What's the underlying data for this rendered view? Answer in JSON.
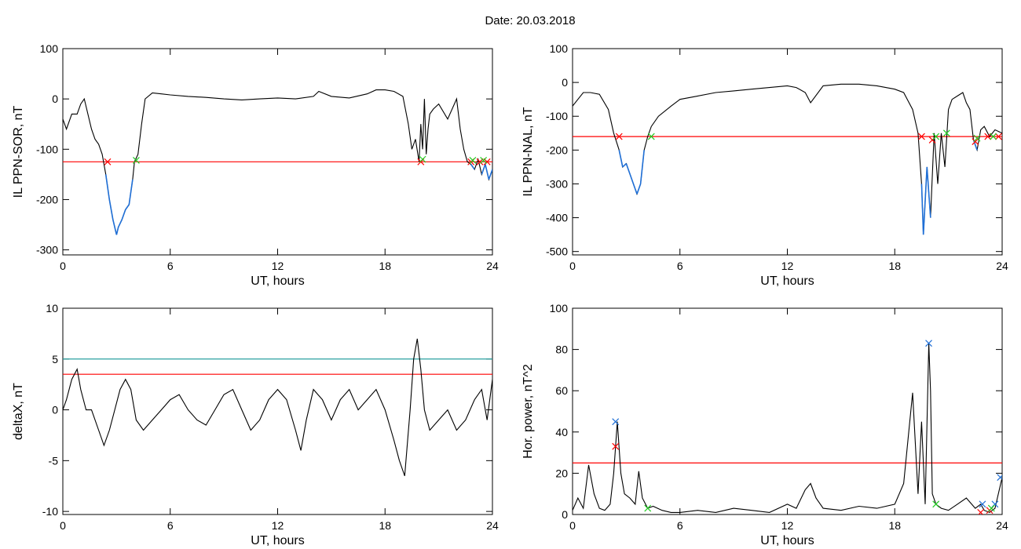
{
  "title": "Date:  20.03.2018",
  "colors": {
    "trace": "#000000",
    "below": "#1f6fd6",
    "threshold_red": "#ff0000",
    "threshold_teal": "#2aa0a0",
    "mark_red": "#ff0000",
    "mark_green": "#22cc22",
    "mark_blue": "#1f6fd6"
  },
  "chart_data": [
    {
      "type": "line",
      "xlabel": "UT, hours",
      "ylabel": "IL PPN-SOR, nT",
      "xlim": [
        0,
        24
      ],
      "ylim": [
        -310,
        100
      ],
      "xticks": [
        0,
        6,
        12,
        18,
        24
      ],
      "yticks": [
        -300,
        -200,
        -100,
        0,
        100
      ],
      "xtick_labels": [
        "0",
        "6",
        "12",
        "18",
        "24"
      ],
      "ytick_labels": [
        "-300",
        "-200",
        "-100",
        "0",
        "100"
      ],
      "threshold": -125,
      "series": [
        {
          "x": [
            0,
            0.2,
            0.5,
            0.8,
            1.0,
            1.2,
            1.4,
            1.6,
            1.8,
            2.0,
            2.2,
            2.4,
            2.6,
            2.8,
            3.0,
            3.1,
            3.3,
            3.5,
            3.7,
            3.9,
            4.0,
            4.2,
            4.4,
            4.6,
            5.0,
            5.5,
            6,
            7,
            8,
            9,
            10,
            11,
            12,
            13,
            14,
            14.3,
            15,
            16,
            17,
            17.5,
            18,
            18.5,
            19,
            19.3,
            19.5,
            19.7,
            19.9,
            20.0,
            20.1,
            20.2,
            20.3,
            20.4,
            20.5,
            20.7,
            21.0,
            21.5,
            22.0,
            22.2,
            22.4,
            22.6,
            22.8,
            23.0,
            23.2,
            23.4,
            23.6,
            23.8,
            24.0
          ],
          "y": [
            -40,
            -60,
            -30,
            -30,
            -10,
            0,
            -30,
            -60,
            -80,
            -90,
            -110,
            -150,
            -200,
            -240,
            -270,
            -255,
            -240,
            -220,
            -210,
            -160,
            -125,
            -110,
            -50,
            0,
            12,
            10,
            8,
            5,
            3,
            0,
            -2,
            0,
            2,
            0,
            5,
            15,
            5,
            2,
            10,
            18,
            18,
            15,
            5,
            -50,
            -100,
            -80,
            -125,
            -50,
            -100,
            0,
            -110,
            -60,
            -30,
            -20,
            -10,
            -40,
            0,
            -60,
            -100,
            -125,
            -130,
            -140,
            -120,
            -150,
            -130,
            -160,
            -140
          ]
        }
      ],
      "crossings_red": [
        [
          2.5,
          -125
        ],
        [
          20.0,
          -125
        ],
        [
          22.8,
          -125
        ],
        [
          23.3,
          -125
        ],
        [
          23.7,
          -125
        ]
      ],
      "crossings_green": [
        [
          4.1,
          -122
        ],
        [
          20.1,
          -120
        ],
        [
          22.9,
          -122
        ],
        [
          23.5,
          -122
        ]
      ]
    },
    {
      "type": "line",
      "xlabel": "UT, hours",
      "ylabel": "IL PPN-NAL, nT",
      "xlim": [
        0,
        24
      ],
      "ylim": [
        -510,
        100
      ],
      "xticks": [
        0,
        6,
        12,
        18,
        24
      ],
      "yticks": [
        -500,
        -400,
        -300,
        -200,
        -100,
        0,
        100
      ],
      "xtick_labels": [
        "0",
        "6",
        "12",
        "18",
        "24"
      ],
      "ytick_labels": [
        "-500",
        "-400",
        "-300",
        "-200",
        "-100",
        "0",
        "100"
      ],
      "threshold": -160,
      "series": [
        {
          "x": [
            0,
            0.3,
            0.6,
            1.0,
            1.5,
            2.0,
            2.3,
            2.6,
            2.8,
            3.0,
            3.2,
            3.4,
            3.6,
            3.8,
            4.0,
            4.2,
            4.4,
            4.8,
            5.5,
            6,
            7,
            8,
            9,
            10,
            11,
            12,
            12.5,
            13,
            13.3,
            14,
            15,
            16,
            17,
            18,
            18.5,
            19,
            19.3,
            19.5,
            19.6,
            19.8,
            20.0,
            20.2,
            20.4,
            20.6,
            20.8,
            21.0,
            21.2,
            21.5,
            21.8,
            22.0,
            22.2,
            22.4,
            22.6,
            22.8,
            23.0,
            23.3,
            23.6,
            24.0
          ],
          "y": [
            -70,
            -50,
            -30,
            -30,
            -35,
            -80,
            -150,
            -200,
            -250,
            -240,
            -270,
            -300,
            -330,
            -300,
            -200,
            -160,
            -130,
            -100,
            -70,
            -50,
            -40,
            -30,
            -25,
            -20,
            -15,
            -10,
            -15,
            -30,
            -60,
            -10,
            -5,
            -5,
            -10,
            -20,
            -30,
            -80,
            -150,
            -300,
            -450,
            -250,
            -400,
            -150,
            -300,
            -150,
            -250,
            -80,
            -50,
            -40,
            -30,
            -60,
            -80,
            -170,
            -200,
            -140,
            -130,
            -160,
            -140,
            -150
          ]
        }
      ],
      "crossings_red": [
        [
          2.6,
          -160
        ],
        [
          19.5,
          -160
        ],
        [
          20.1,
          -170
        ],
        [
          22.5,
          -175
        ],
        [
          23.2,
          -160
        ],
        [
          23.8,
          -160
        ]
      ],
      "crossings_green": [
        [
          4.4,
          -160
        ],
        [
          20.3,
          -160
        ],
        [
          20.9,
          -150
        ],
        [
          22.6,
          -165
        ],
        [
          23.5,
          -160
        ]
      ]
    },
    {
      "type": "line",
      "xlabel": "UT, hours",
      "ylabel": "deltaX, nT",
      "xlim": [
        0,
        24
      ],
      "ylim": [
        -10.3,
        10
      ],
      "xticks": [
        0,
        6,
        12,
        18,
        24
      ],
      "yticks": [
        -10,
        -5,
        0,
        5,
        10
      ],
      "xtick_labels": [
        "0",
        "6",
        "12",
        "18",
        "24"
      ],
      "ytick_labels": [
        "-10",
        "-5",
        "0",
        "5",
        "10"
      ],
      "threshold_red": 3.5,
      "threshold_teal": 5,
      "series": [
        {
          "x": [
            0,
            0.2,
            0.5,
            0.8,
            1.0,
            1.3,
            1.6,
            2.0,
            2.3,
            2.6,
            2.9,
            3.2,
            3.5,
            3.8,
            4.1,
            4.5,
            5.0,
            5.5,
            6.0,
            6.5,
            7.0,
            7.5,
            8.0,
            8.5,
            9.0,
            9.5,
            10.0,
            10.5,
            11.0,
            11.5,
            12.0,
            12.5,
            13.0,
            13.3,
            13.6,
            14.0,
            14.5,
            15.0,
            15.5,
            16.0,
            16.5,
            17.0,
            17.5,
            18.0,
            18.5,
            18.8,
            19.1,
            19.4,
            19.6,
            19.8,
            20.0,
            20.2,
            20.5,
            21.0,
            21.5,
            22.0,
            22.5,
            23.0,
            23.4,
            23.7,
            24.0
          ],
          "y": [
            0,
            1,
            3,
            4,
            2,
            0,
            0,
            -2,
            -3.5,
            -2,
            0,
            2,
            3,
            2,
            -1,
            -2,
            -1,
            0,
            1,
            1.5,
            0,
            -1,
            -1.5,
            0,
            1.5,
            2,
            0,
            -2,
            -1,
            1,
            2,
            1,
            -2,
            -4,
            -1,
            2,
            1,
            -1,
            1,
            2,
            0,
            1,
            2,
            0,
            -3,
            -5,
            -6.5,
            0,
            5,
            7,
            4,
            0,
            -2,
            -1,
            0,
            -2,
            -1,
            1,
            2,
            -1,
            3
          ]
        }
      ]
    },
    {
      "type": "line",
      "xlabel": "UT, hours",
      "ylabel": "Hor. power, nT^2",
      "xlim": [
        0,
        24
      ],
      "ylim": [
        0,
        100
      ],
      "xticks": [
        0,
        6,
        12,
        18,
        24
      ],
      "yticks": [
        0,
        20,
        40,
        60,
        80,
        100
      ],
      "xtick_labels": [
        "0",
        "6",
        "12",
        "18",
        "24"
      ],
      "ytick_labels": [
        "0",
        "20",
        "40",
        "60",
        "80",
        "100"
      ],
      "threshold": 25,
      "series": [
        {
          "x": [
            0,
            0.3,
            0.6,
            0.9,
            1.2,
            1.5,
            1.8,
            2.1,
            2.3,
            2.5,
            2.7,
            2.9,
            3.2,
            3.5,
            3.7,
            3.9,
            4.2,
            4.5,
            5.0,
            5.5,
            6.0,
            7.0,
            8.0,
            9.0,
            10.0,
            11.0,
            12.0,
            12.5,
            13.0,
            13.3,
            13.6,
            14.0,
            15.0,
            16.0,
            17.0,
            18.0,
            18.5,
            19.0,
            19.3,
            19.5,
            19.7,
            19.9,
            20.0,
            20.1,
            20.3,
            20.6,
            21.0,
            21.5,
            22.0,
            22.5,
            22.8,
            23.0,
            23.3,
            23.6,
            24.0
          ],
          "y": [
            2,
            8,
            3,
            24,
            10,
            3,
            2,
            5,
            20,
            45,
            20,
            10,
            8,
            5,
            21,
            8,
            3,
            4,
            2,
            1,
            1,
            2,
            1,
            3,
            2,
            1,
            5,
            3,
            12,
            15,
            8,
            3,
            2,
            4,
            3,
            5,
            15,
            59,
            10,
            45,
            5,
            83,
            60,
            10,
            5,
            3,
            2,
            5,
            8,
            3,
            5,
            2,
            1,
            3,
            18
          ]
        }
      ],
      "peaks_red": [
        [
          2.4,
          33
        ],
        [
          22.8,
          1
        ],
        [
          23.3,
          2
        ]
      ],
      "peaks_blue": [
        [
          2.4,
          45
        ],
        [
          19.9,
          83
        ],
        [
          22.9,
          5
        ],
        [
          23.6,
          5
        ],
        [
          23.9,
          18
        ]
      ],
      "peaks_green": [
        [
          4.2,
          3
        ],
        [
          20.3,
          5
        ],
        [
          23.4,
          3
        ]
      ]
    }
  ]
}
